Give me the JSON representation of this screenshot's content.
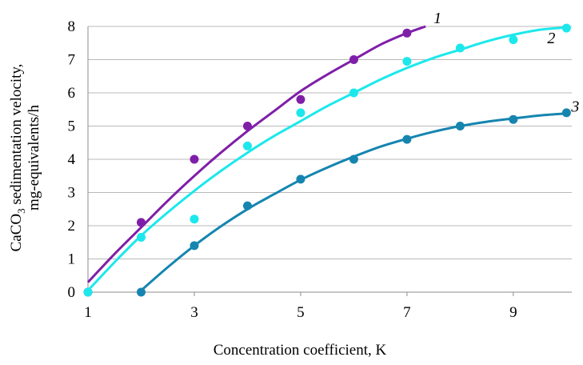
{
  "chart_data": {
    "type": "scatter",
    "xlabel": "Concentration coefficient, K",
    "ylabel_line1_prefix": "CaCO",
    "ylabel_line1_subscript": "3",
    "ylabel_line1_suffix": " sedimentation velocity,",
    "ylabel_line2": "mg-equivalents/h",
    "xlim": [
      1,
      10.1
    ],
    "ylim": [
      0,
      8
    ],
    "x_ticks": [
      "1",
      "3",
      "5",
      "7",
      "9"
    ],
    "y_ticks": [
      "0",
      "1",
      "2",
      "3",
      "4",
      "5",
      "6",
      "7",
      "8"
    ],
    "grid": "horizontal",
    "series": [
      {
        "label": "1",
        "color": "#7f1fa8",
        "points": [
          [
            1,
            0
          ],
          [
            2,
            2.1
          ],
          [
            3,
            4.0
          ],
          [
            4,
            5.0
          ],
          [
            5,
            5.8
          ],
          [
            6,
            7.0
          ],
          [
            7,
            7.8
          ]
        ],
        "curve": [
          [
            1,
            0.3
          ],
          [
            1.5,
            1.15
          ],
          [
            2,
            1.95
          ],
          [
            2.5,
            2.75
          ],
          [
            3,
            3.5
          ],
          [
            3.5,
            4.2
          ],
          [
            4,
            4.85
          ],
          [
            4.5,
            5.45
          ],
          [
            5,
            6.05
          ],
          [
            5.5,
            6.55
          ],
          [
            6,
            7.0
          ],
          [
            6.5,
            7.45
          ],
          [
            7,
            7.8
          ],
          [
            7.35,
            8.0
          ]
        ]
      },
      {
        "label": "2",
        "color": "#1ce8ec",
        "points": [
          [
            1,
            0
          ],
          [
            2,
            1.65
          ],
          [
            3,
            2.2
          ],
          [
            4,
            4.4
          ],
          [
            5,
            5.4
          ],
          [
            6,
            6.0
          ],
          [
            7,
            6.95
          ],
          [
            8,
            7.35
          ],
          [
            9,
            7.6
          ],
          [
            10,
            7.95
          ]
        ],
        "curve": [
          [
            1,
            0.05
          ],
          [
            1.5,
            0.9
          ],
          [
            2,
            1.7
          ],
          [
            2.5,
            2.4
          ],
          [
            3,
            3.05
          ],
          [
            3.5,
            3.65
          ],
          [
            4,
            4.2
          ],
          [
            4.5,
            4.7
          ],
          [
            5,
            5.15
          ],
          [
            5.5,
            5.6
          ],
          [
            6,
            6.0
          ],
          [
            6.5,
            6.4
          ],
          [
            7,
            6.75
          ],
          [
            7.5,
            7.05
          ],
          [
            8,
            7.3
          ],
          [
            8.5,
            7.55
          ],
          [
            9,
            7.75
          ],
          [
            9.5,
            7.9
          ],
          [
            10,
            7.97
          ]
        ]
      },
      {
        "label": "3",
        "color": "#1585b0",
        "points": [
          [
            2,
            0
          ],
          [
            3,
            1.4
          ],
          [
            4,
            2.6
          ],
          [
            5,
            3.4
          ],
          [
            6,
            4.0
          ],
          [
            7,
            4.6
          ],
          [
            8,
            5.0
          ],
          [
            9,
            5.2
          ],
          [
            10,
            5.4
          ]
        ],
        "curve": [
          [
            2,
            0.05
          ],
          [
            2.5,
            0.75
          ],
          [
            3,
            1.4
          ],
          [
            3.5,
            1.98
          ],
          [
            4,
            2.5
          ],
          [
            4.5,
            2.95
          ],
          [
            5,
            3.38
          ],
          [
            5.5,
            3.75
          ],
          [
            6,
            4.08
          ],
          [
            6.5,
            4.38
          ],
          [
            7,
            4.62
          ],
          [
            7.5,
            4.83
          ],
          [
            8,
            5.0
          ],
          [
            8.5,
            5.13
          ],
          [
            9,
            5.23
          ],
          [
            9.5,
            5.32
          ],
          [
            10,
            5.38
          ]
        ]
      }
    ]
  }
}
